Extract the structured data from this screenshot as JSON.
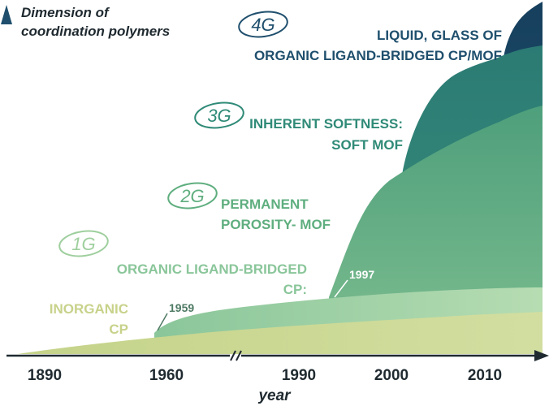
{
  "axes": {
    "y_title_line1": "Dimension of",
    "y_title_line2": "coordination polymers",
    "x_title": "year",
    "ticks": [
      "1890",
      "1960",
      "1990",
      "2000",
      "2010"
    ]
  },
  "annotations": {
    "y1959": "1959",
    "y1997": "1997"
  },
  "generations": [
    {
      "id": "inorganic",
      "badge": "",
      "lines": [
        "INORGANIC",
        "CP"
      ],
      "color": "#c8d28a"
    },
    {
      "id": "1g",
      "badge": "1G",
      "lines": [
        "ORGANIC LIGAND-BRIDGED",
        "CP:"
      ],
      "color": "#9fcf9e"
    },
    {
      "id": "2g",
      "badge": "2G",
      "lines": [
        "PERMANENT",
        "POROSITY- MOF"
      ],
      "color": "#5fae7f"
    },
    {
      "id": "3g",
      "badge": "3G",
      "lines": [
        "INHERENT SOFTNESS:",
        "SOFT MOF"
      ],
      "color": "#2f8a77"
    },
    {
      "id": "4g",
      "badge": "4G",
      "lines": [
        "LIQUID, GLASS OF",
        "ORGANIC LIGAND-BRIDGED CP/MOF"
      ],
      "color": "#1f4f6d"
    }
  ]
}
